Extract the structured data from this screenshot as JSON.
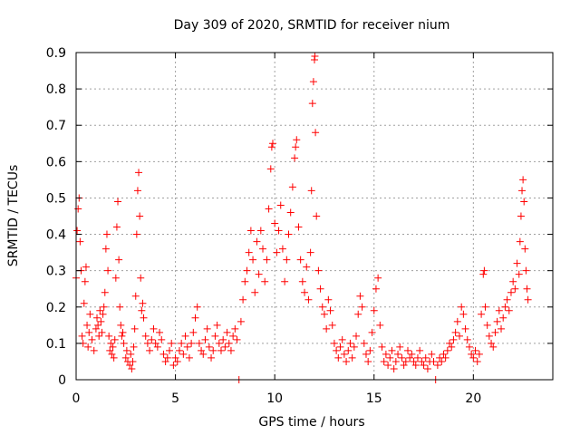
{
  "chart_data": {
    "type": "scatter",
    "title": "Day 309 of 2020, SRMTID for receiver nium",
    "xlabel": "GPS time / hours",
    "ylabel": "SRMTID / TECUs",
    "xlim": [
      0,
      24
    ],
    "ylim": [
      0,
      0.9
    ],
    "xticks": [
      0,
      5,
      10,
      15,
      20
    ],
    "xtick_labels": [
      "0",
      "5",
      "10",
      "15",
      "20"
    ],
    "yticks": [
      0,
      0.1,
      0.2,
      0.3,
      0.4,
      0.5,
      0.6,
      0.7,
      0.8,
      0.9
    ],
    "ytick_labels": [
      "0",
      "0.1",
      "0.2",
      "0.3",
      "0.4",
      "0.5",
      "0.6",
      "0.7",
      "0.8",
      "0.9"
    ],
    "grid": true,
    "marker": "+",
    "color": "#ff0000",
    "series": [
      {
        "name": "SRMTID",
        "points": [
          [
            0.0,
            0.28
          ],
          [
            0.05,
            0.41
          ],
          [
            0.1,
            0.47
          ],
          [
            0.15,
            0.5
          ],
          [
            0.2,
            0.38
          ],
          [
            0.25,
            0.3
          ],
          [
            0.3,
            0.12
          ],
          [
            0.35,
            0.1
          ],
          [
            0.4,
            0.21
          ],
          [
            0.45,
            0.27
          ],
          [
            0.5,
            0.31
          ],
          [
            0.55,
            0.15
          ],
          [
            0.6,
            0.09
          ],
          [
            0.65,
            0.13
          ],
          [
            0.7,
            0.18
          ],
          [
            0.8,
            0.11
          ],
          [
            0.9,
            0.08
          ],
          [
            1.0,
            0.14
          ],
          [
            1.05,
            0.17
          ],
          [
            1.1,
            0.15
          ],
          [
            1.15,
            0.12
          ],
          [
            1.2,
            0.19
          ],
          [
            1.25,
            0.16
          ],
          [
            1.3,
            0.13
          ],
          [
            1.35,
            0.18
          ],
          [
            1.4,
            0.2
          ],
          [
            1.45,
            0.24
          ],
          [
            1.5,
            0.36
          ],
          [
            1.55,
            0.4
          ],
          [
            1.6,
            0.3
          ],
          [
            1.65,
            0.12
          ],
          [
            1.7,
            0.08
          ],
          [
            1.75,
            0.1
          ],
          [
            1.8,
            0.07
          ],
          [
            1.85,
            0.09
          ],
          [
            1.9,
            0.06
          ],
          [
            1.95,
            0.11
          ],
          [
            2.0,
            0.28
          ],
          [
            2.05,
            0.42
          ],
          [
            2.1,
            0.49
          ],
          [
            2.15,
            0.33
          ],
          [
            2.2,
            0.2
          ],
          [
            2.25,
            0.15
          ],
          [
            2.3,
            0.12
          ],
          [
            2.35,
            0.13
          ],
          [
            2.4,
            0.1
          ],
          [
            2.5,
            0.06
          ],
          [
            2.55,
            0.08
          ],
          [
            2.6,
            0.05
          ],
          [
            2.7,
            0.04
          ],
          [
            2.75,
            0.07
          ],
          [
            2.8,
            0.03
          ],
          [
            2.85,
            0.05
          ],
          [
            2.9,
            0.09
          ],
          [
            2.95,
            0.14
          ],
          [
            3.0,
            0.23
          ],
          [
            3.05,
            0.4
          ],
          [
            3.1,
            0.52
          ],
          [
            3.15,
            0.57
          ],
          [
            3.2,
            0.45
          ],
          [
            3.25,
            0.28
          ],
          [
            3.3,
            0.19
          ],
          [
            3.35,
            0.21
          ],
          [
            3.4,
            0.17
          ],
          [
            3.5,
            0.12
          ],
          [
            3.6,
            0.1
          ],
          [
            3.7,
            0.08
          ],
          [
            3.8,
            0.11
          ],
          [
            3.9,
            0.14
          ],
          [
            4.0,
            0.1
          ],
          [
            4.1,
            0.09
          ],
          [
            4.2,
            0.13
          ],
          [
            4.3,
            0.11
          ],
          [
            4.4,
            0.07
          ],
          [
            4.5,
            0.05
          ],
          [
            4.6,
            0.06
          ],
          [
            4.7,
            0.08
          ],
          [
            4.8,
            0.1
          ],
          [
            4.9,
            0.04
          ],
          [
            5.0,
            0.06
          ],
          [
            5.1,
            0.05
          ],
          [
            5.2,
            0.08
          ],
          [
            5.3,
            0.1
          ],
          [
            5.4,
            0.07
          ],
          [
            5.5,
            0.12
          ],
          [
            5.6,
            0.09
          ],
          [
            5.7,
            0.06
          ],
          [
            5.8,
            0.1
          ],
          [
            5.9,
            0.13
          ],
          [
            6.0,
            0.17
          ],
          [
            6.1,
            0.2
          ],
          [
            6.2,
            0.1
          ],
          [
            6.3,
            0.08
          ],
          [
            6.4,
            0.07
          ],
          [
            6.5,
            0.11
          ],
          [
            6.6,
            0.14
          ],
          [
            6.7,
            0.09
          ],
          [
            6.8,
            0.06
          ],
          [
            6.9,
            0.08
          ],
          [
            7.0,
            0.12
          ],
          [
            7.1,
            0.15
          ],
          [
            7.2,
            0.1
          ],
          [
            7.3,
            0.08
          ],
          [
            7.4,
            0.11
          ],
          [
            7.5,
            0.09
          ],
          [
            7.6,
            0.13
          ],
          [
            7.7,
            0.1
          ],
          [
            7.8,
            0.08
          ],
          [
            7.9,
            0.12
          ],
          [
            8.0,
            0.14
          ],
          [
            8.1,
            0.11
          ],
          [
            8.2,
            0.0
          ],
          [
            8.3,
            0.16
          ],
          [
            8.4,
            0.22
          ],
          [
            8.5,
            0.27
          ],
          [
            8.6,
            0.3
          ],
          [
            8.7,
            0.35
          ],
          [
            8.8,
            0.41
          ],
          [
            8.9,
            0.33
          ],
          [
            9.0,
            0.24
          ],
          [
            9.1,
            0.38
          ],
          [
            9.2,
            0.29
          ],
          [
            9.3,
            0.41
          ],
          [
            9.4,
            0.36
          ],
          [
            9.5,
            0.27
          ],
          [
            9.6,
            0.33
          ],
          [
            9.7,
            0.47
          ],
          [
            9.8,
            0.58
          ],
          [
            9.85,
            0.64
          ],
          [
            9.9,
            0.65
          ],
          [
            10.0,
            0.43
          ],
          [
            10.1,
            0.35
          ],
          [
            10.2,
            0.41
          ],
          [
            10.3,
            0.48
          ],
          [
            10.4,
            0.36
          ],
          [
            10.5,
            0.27
          ],
          [
            10.6,
            0.33
          ],
          [
            10.7,
            0.4
          ],
          [
            10.8,
            0.46
          ],
          [
            10.9,
            0.53
          ],
          [
            11.0,
            0.61
          ],
          [
            11.05,
            0.64
          ],
          [
            11.1,
            0.66
          ],
          [
            11.2,
            0.42
          ],
          [
            11.3,
            0.33
          ],
          [
            11.4,
            0.27
          ],
          [
            11.5,
            0.24
          ],
          [
            11.6,
            0.31
          ],
          [
            11.7,
            0.22
          ],
          [
            11.8,
            0.35
          ],
          [
            11.85,
            0.52
          ],
          [
            11.9,
            0.76
          ],
          [
            11.95,
            0.82
          ],
          [
            12.0,
            0.88
          ],
          [
            12.02,
            0.89
          ],
          [
            12.05,
            0.68
          ],
          [
            12.1,
            0.45
          ],
          [
            12.2,
            0.3
          ],
          [
            12.3,
            0.25
          ],
          [
            12.4,
            0.2
          ],
          [
            12.5,
            0.18
          ],
          [
            12.6,
            0.14
          ],
          [
            12.7,
            0.22
          ],
          [
            12.8,
            0.19
          ],
          [
            12.9,
            0.15
          ],
          [
            13.0,
            0.1
          ],
          [
            13.1,
            0.08
          ],
          [
            13.2,
            0.06
          ],
          [
            13.3,
            0.09
          ],
          [
            13.4,
            0.11
          ],
          [
            13.5,
            0.07
          ],
          [
            13.6,
            0.05
          ],
          [
            13.7,
            0.08
          ],
          [
            13.8,
            0.1
          ],
          [
            13.9,
            0.06
          ],
          [
            14.0,
            0.09
          ],
          [
            14.1,
            0.12
          ],
          [
            14.2,
            0.18
          ],
          [
            14.3,
            0.23
          ],
          [
            14.4,
            0.2
          ],
          [
            14.5,
            0.1
          ],
          [
            14.6,
            0.07
          ],
          [
            14.7,
            0.05
          ],
          [
            14.8,
            0.08
          ],
          [
            14.9,
            0.13
          ],
          [
            15.0,
            0.19
          ],
          [
            15.1,
            0.25
          ],
          [
            15.2,
            0.28
          ],
          [
            15.3,
            0.15
          ],
          [
            15.4,
            0.09
          ],
          [
            15.5,
            0.05
          ],
          [
            15.6,
            0.07
          ],
          [
            15.7,
            0.04
          ],
          [
            15.8,
            0.06
          ],
          [
            15.9,
            0.08
          ],
          [
            16.0,
            0.03
          ],
          [
            16.1,
            0.05
          ],
          [
            16.2,
            0.07
          ],
          [
            16.3,
            0.09
          ],
          [
            16.4,
            0.06
          ],
          [
            16.5,
            0.04
          ],
          [
            16.6,
            0.05
          ],
          [
            16.7,
            0.08
          ],
          [
            16.8,
            0.06
          ],
          [
            16.9,
            0.07
          ],
          [
            17.0,
            0.05
          ],
          [
            17.1,
            0.04
          ],
          [
            17.2,
            0.06
          ],
          [
            17.3,
            0.08
          ],
          [
            17.4,
            0.05
          ],
          [
            17.5,
            0.04
          ],
          [
            17.6,
            0.06
          ],
          [
            17.7,
            0.03
          ],
          [
            17.8,
            0.05
          ],
          [
            17.9,
            0.07
          ],
          [
            18.0,
            0.05
          ],
          [
            18.1,
            0.0
          ],
          [
            18.2,
            0.04
          ],
          [
            18.3,
            0.06
          ],
          [
            18.4,
            0.05
          ],
          [
            18.5,
            0.07
          ],
          [
            18.6,
            0.06
          ],
          [
            18.7,
            0.08
          ],
          [
            18.8,
            0.1
          ],
          [
            18.9,
            0.09
          ],
          [
            19.0,
            0.11
          ],
          [
            19.1,
            0.13
          ],
          [
            19.2,
            0.16
          ],
          [
            19.3,
            0.12
          ],
          [
            19.4,
            0.2
          ],
          [
            19.5,
            0.18
          ],
          [
            19.6,
            0.14
          ],
          [
            19.7,
            0.11
          ],
          [
            19.8,
            0.09
          ],
          [
            19.9,
            0.07
          ],
          [
            20.0,
            0.06
          ],
          [
            20.1,
            0.08
          ],
          [
            20.2,
            0.05
          ],
          [
            20.3,
            0.07
          ],
          [
            20.4,
            0.18
          ],
          [
            20.5,
            0.29
          ],
          [
            20.55,
            0.3
          ],
          [
            20.6,
            0.2
          ],
          [
            20.7,
            0.15
          ],
          [
            20.8,
            0.12
          ],
          [
            20.9,
            0.1
          ],
          [
            21.0,
            0.09
          ],
          [
            21.1,
            0.13
          ],
          [
            21.2,
            0.16
          ],
          [
            21.3,
            0.19
          ],
          [
            21.4,
            0.14
          ],
          [
            21.5,
            0.17
          ],
          [
            21.6,
            0.2
          ],
          [
            21.7,
            0.22
          ],
          [
            21.8,
            0.19
          ],
          [
            21.9,
            0.24
          ],
          [
            22.0,
            0.27
          ],
          [
            22.1,
            0.25
          ],
          [
            22.2,
            0.32
          ],
          [
            22.3,
            0.29
          ],
          [
            22.35,
            0.38
          ],
          [
            22.4,
            0.45
          ],
          [
            22.45,
            0.52
          ],
          [
            22.5,
            0.55
          ],
          [
            22.55,
            0.49
          ],
          [
            22.6,
            0.36
          ],
          [
            22.65,
            0.3
          ],
          [
            22.7,
            0.25
          ],
          [
            22.75,
            0.22
          ]
        ]
      }
    ]
  }
}
